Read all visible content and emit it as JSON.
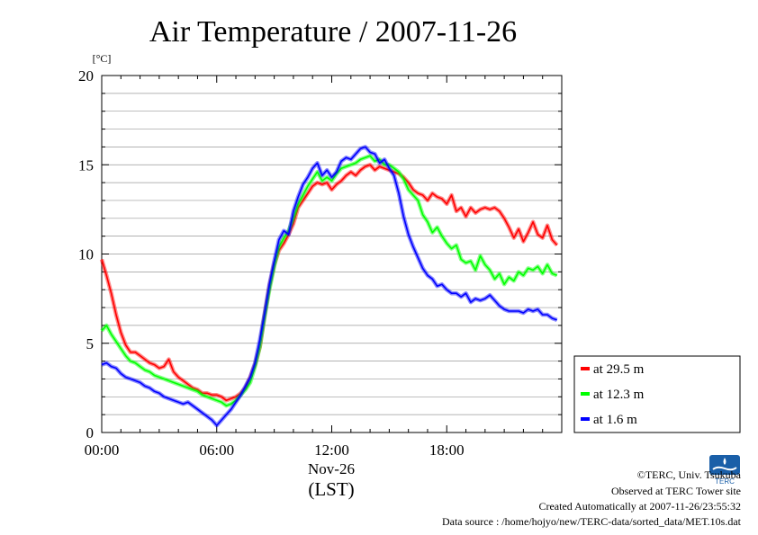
{
  "chart_data": {
    "type": "line",
    "title": "Air Temperature / 2007-11-26",
    "yunit": "[°C]",
    "ylim": [
      0,
      20
    ],
    "yticks": [
      0,
      5,
      10,
      15,
      20
    ],
    "xlim": [
      0,
      24
    ],
    "xticks": [
      {
        "hour": 0,
        "label": "00:00"
      },
      {
        "hour": 6,
        "label": "06:00"
      },
      {
        "hour": 12,
        "label": "12:00"
      },
      {
        "hour": 18,
        "label": "18:00"
      }
    ],
    "xdate": "Nov-26",
    "xunit": "(LST)",
    "grid": "horizontal",
    "legend_position": "lower-right outside",
    "series": [
      {
        "name": "at 29.5 m",
        "color": "#ff0000",
        "x": [
          0.0,
          0.25,
          0.5,
          0.75,
          1.0,
          1.25,
          1.5,
          1.75,
          2.0,
          2.25,
          2.5,
          2.75,
          3.0,
          3.25,
          3.5,
          3.75,
          4.0,
          4.25,
          4.5,
          4.75,
          5.0,
          5.25,
          5.5,
          5.75,
          6.0,
          6.25,
          6.5,
          6.75,
          7.0,
          7.25,
          7.5,
          7.75,
          8.0,
          8.25,
          8.5,
          8.75,
          9.0,
          9.25,
          9.5,
          9.75,
          10.0,
          10.25,
          10.5,
          10.75,
          11.0,
          11.25,
          11.5,
          11.75,
          12.0,
          12.25,
          12.5,
          12.75,
          13.0,
          13.25,
          13.5,
          13.75,
          14.0,
          14.25,
          14.5,
          14.75,
          15.0,
          15.25,
          15.5,
          15.75,
          16.0,
          16.25,
          16.5,
          16.75,
          17.0,
          17.25,
          17.5,
          17.75,
          18.0,
          18.25,
          18.5,
          18.75,
          19.0,
          19.25,
          19.5,
          19.75,
          20.0,
          20.25,
          20.5,
          20.75,
          21.0,
          21.25,
          21.5,
          21.75,
          22.0,
          22.25,
          22.5,
          22.75,
          23.0,
          23.25,
          23.5,
          23.75
        ],
        "y": [
          9.7,
          8.8,
          7.8,
          6.6,
          5.6,
          4.9,
          4.5,
          4.5,
          4.3,
          4.1,
          3.9,
          3.8,
          3.6,
          3.7,
          4.1,
          3.4,
          3.1,
          2.9,
          2.7,
          2.5,
          2.4,
          2.2,
          2.2,
          2.1,
          2.1,
          2.0,
          1.8,
          1.9,
          2.0,
          2.2,
          2.5,
          3.1,
          3.8,
          4.8,
          6.6,
          8.2,
          9.4,
          10.2,
          10.6,
          11.1,
          11.7,
          12.6,
          13.0,
          13.4,
          13.8,
          14.0,
          13.9,
          14.0,
          13.6,
          13.9,
          14.1,
          14.4,
          14.6,
          14.4,
          14.7,
          14.9,
          15.0,
          14.7,
          14.9,
          14.8,
          14.7,
          14.6,
          14.5,
          14.3,
          14.0,
          13.6,
          13.4,
          13.3,
          13.0,
          13.4,
          13.2,
          13.1,
          12.8,
          13.3,
          12.4,
          12.6,
          12.1,
          12.6,
          12.3,
          12.5,
          12.6,
          12.5,
          12.6,
          12.4,
          12.0,
          11.5,
          10.9,
          11.4,
          10.7,
          11.2,
          11.8,
          11.1,
          10.9,
          11.6,
          10.8,
          10.5
        ]
      },
      {
        "name": "at 12.3 m",
        "color": "#00ff00",
        "x": [
          0.0,
          0.25,
          0.5,
          0.75,
          1.0,
          1.25,
          1.5,
          1.75,
          2.0,
          2.25,
          2.5,
          2.75,
          3.0,
          3.25,
          3.5,
          3.75,
          4.0,
          4.25,
          4.5,
          4.75,
          5.0,
          5.25,
          5.5,
          5.75,
          6.0,
          6.25,
          6.5,
          6.75,
          7.0,
          7.25,
          7.5,
          7.75,
          8.0,
          8.25,
          8.5,
          8.75,
          9.0,
          9.25,
          9.5,
          9.75,
          10.0,
          10.25,
          10.5,
          10.75,
          11.0,
          11.25,
          11.5,
          11.75,
          12.0,
          12.25,
          12.5,
          12.75,
          13.0,
          13.25,
          13.5,
          13.75,
          14.0,
          14.25,
          14.5,
          14.75,
          15.0,
          15.25,
          15.5,
          15.75,
          16.0,
          16.25,
          16.5,
          16.75,
          17.0,
          17.25,
          17.5,
          17.75,
          18.0,
          18.25,
          18.5,
          18.75,
          19.0,
          19.25,
          19.5,
          19.75,
          20.0,
          20.25,
          20.5,
          20.75,
          21.0,
          21.25,
          21.5,
          21.75,
          22.0,
          22.25,
          22.5,
          22.75,
          23.0,
          23.25,
          23.5,
          23.75
        ],
        "y": [
          5.7,
          6.0,
          5.5,
          5.1,
          4.7,
          4.3,
          4.0,
          3.9,
          3.7,
          3.5,
          3.4,
          3.2,
          3.1,
          3.0,
          2.9,
          2.8,
          2.7,
          2.6,
          2.5,
          2.4,
          2.3,
          2.1,
          2.0,
          1.9,
          1.8,
          1.7,
          1.5,
          1.6,
          1.8,
          2.1,
          2.4,
          2.8,
          3.7,
          4.8,
          6.5,
          8.0,
          9.3,
          10.4,
          10.9,
          11.3,
          12.0,
          12.8,
          13.3,
          13.8,
          14.2,
          14.6,
          14.1,
          14.3,
          14.1,
          14.5,
          14.8,
          14.9,
          15.0,
          15.1,
          15.3,
          15.4,
          15.5,
          15.2,
          15.3,
          15.0,
          15.0,
          14.8,
          14.6,
          14.2,
          13.6,
          13.3,
          13.0,
          12.2,
          11.8,
          11.2,
          11.5,
          11.0,
          10.6,
          10.3,
          10.5,
          9.7,
          9.5,
          9.6,
          9.1,
          9.9,
          9.4,
          9.1,
          8.6,
          8.9,
          8.3,
          8.7,
          8.5,
          9.0,
          8.8,
          9.2,
          9.1,
          9.3,
          8.9,
          9.4,
          8.9,
          8.8
        ]
      },
      {
        "name": "at 1.6 m",
        "color": "#0000ff",
        "x": [
          0.0,
          0.25,
          0.5,
          0.75,
          1.0,
          1.25,
          1.5,
          1.75,
          2.0,
          2.25,
          2.5,
          2.75,
          3.0,
          3.25,
          3.5,
          3.75,
          4.0,
          4.25,
          4.5,
          4.75,
          5.0,
          5.25,
          5.5,
          5.75,
          6.0,
          6.25,
          6.5,
          6.75,
          7.0,
          7.25,
          7.5,
          7.75,
          8.0,
          8.25,
          8.5,
          8.75,
          9.0,
          9.25,
          9.5,
          9.75,
          10.0,
          10.25,
          10.5,
          10.75,
          11.0,
          11.25,
          11.5,
          11.75,
          12.0,
          12.25,
          12.5,
          12.75,
          13.0,
          13.25,
          13.5,
          13.75,
          14.0,
          14.25,
          14.5,
          14.75,
          15.0,
          15.25,
          15.5,
          15.75,
          16.0,
          16.25,
          16.5,
          16.75,
          17.0,
          17.25,
          17.5,
          17.75,
          18.0,
          18.25,
          18.5,
          18.75,
          19.0,
          19.25,
          19.5,
          19.75,
          20.0,
          20.25,
          20.5,
          20.75,
          21.0,
          21.25,
          21.5,
          21.75,
          22.0,
          22.25,
          22.5,
          22.75,
          23.0,
          23.25,
          23.5,
          23.75
        ],
        "y": [
          3.8,
          3.9,
          3.7,
          3.6,
          3.3,
          3.1,
          3.0,
          2.9,
          2.8,
          2.6,
          2.5,
          2.3,
          2.2,
          2.0,
          1.9,
          1.8,
          1.7,
          1.6,
          1.7,
          1.5,
          1.3,
          1.1,
          0.9,
          0.7,
          0.4,
          0.7,
          1.0,
          1.3,
          1.7,
          2.1,
          2.6,
          3.1,
          3.9,
          5.2,
          6.7,
          8.3,
          9.6,
          10.8,
          11.3,
          11.1,
          12.4,
          13.2,
          13.9,
          14.3,
          14.8,
          15.1,
          14.4,
          14.7,
          14.3,
          14.6,
          15.2,
          15.4,
          15.3,
          15.6,
          15.9,
          16.0,
          15.7,
          15.6,
          15.1,
          15.3,
          14.8,
          14.4,
          13.4,
          12.1,
          11.1,
          10.4,
          9.8,
          9.2,
          8.8,
          8.6,
          8.2,
          8.3,
          8.0,
          7.8,
          7.8,
          7.6,
          7.8,
          7.3,
          7.5,
          7.4,
          7.5,
          7.7,
          7.4,
          7.1,
          6.9,
          6.8,
          6.8,
          6.8,
          6.7,
          6.9,
          6.8,
          6.9,
          6.6,
          6.6,
          6.4,
          6.3
        ]
      }
    ]
  },
  "logo": {
    "text": "TERC",
    "color": "#1a5fa8"
  },
  "credits": {
    "copyright": "©TERC, Univ. Tsukuba",
    "observed": "Observed at TERC Tower site",
    "created": "Created Automatically at 2007-11-26/23:55:32",
    "source": "Data source : /home/hojyo/new/TERC-data/sorted_data/MET.10s.dat"
  }
}
